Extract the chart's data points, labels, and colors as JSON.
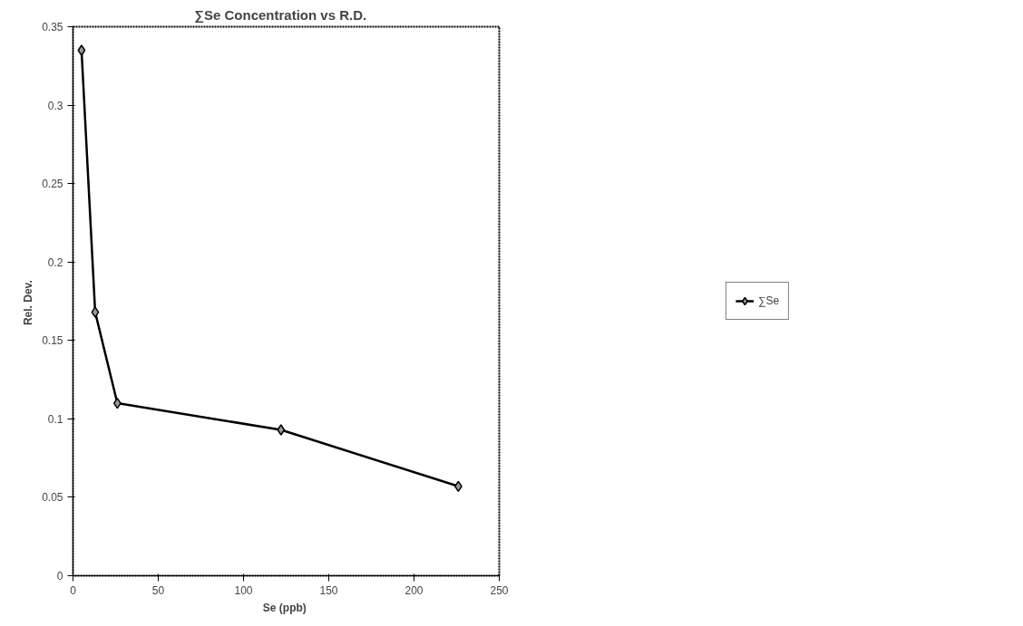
{
  "chart_data": {
    "type": "line",
    "title": "∑Se  Concentration  vs  R.D.",
    "xlabel": "Se  (ppb)",
    "ylabel": "Rel.  Dev.",
    "x": [
      5,
      13,
      26,
      122,
      226
    ],
    "series": [
      {
        "name": "∑Se",
        "color": "#000000",
        "values": [
          0.335,
          0.168,
          0.11,
          0.093,
          0.057
        ]
      }
    ],
    "xlim": [
      0,
      250
    ],
    "xticks": [
      0,
      50,
      100,
      150,
      200,
      250
    ],
    "ylim": [
      0,
      0.35
    ],
    "yticks": [
      0,
      0.05,
      0.1,
      0.15,
      0.2,
      0.25,
      0.3,
      0.35
    ],
    "marker": "diamond",
    "line_style": "solid",
    "grid": false,
    "legend": "right"
  }
}
